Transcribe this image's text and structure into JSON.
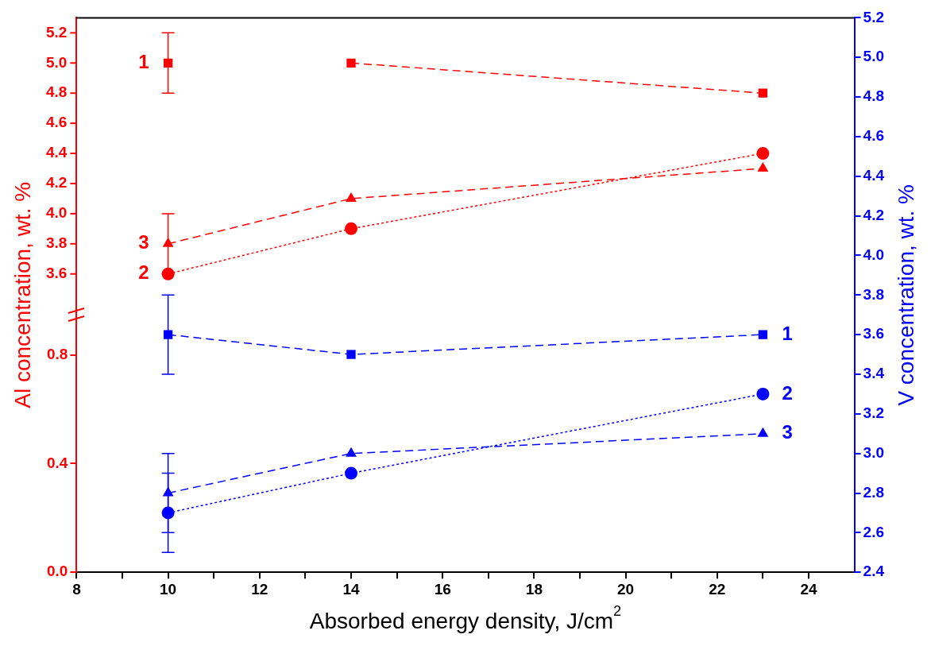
{
  "chart_data": {
    "type": "line",
    "xlabel": "Absorbed energy density, J/cm$^{2}$",
    "ylabel": "Al concentration, wt. %",
    "y2label": "V concentration, wt. %",
    "xlim": [
      8,
      25
    ],
    "xticks": [
      8,
      {
        "value": 9,
        "label": null
      },
      10,
      {
        "value": 11,
        "label": null
      },
      12,
      {
        "value": 13,
        "label": null
      },
      14,
      {
        "value": 15,
        "label": null
      },
      16,
      {
        "value": 17,
        "label": null
      },
      18,
      {
        "value": 19,
        "label": null
      },
      20,
      {
        "value": 21,
        "label": null
      },
      22,
      {
        "value": 23,
        "label": null
      },
      24
    ],
    "ylim": [
      0,
      2.04
    ],
    "yticks": [
      {
        "value": 0,
        "label": "0.0"
      },
      {
        "value": 0.4,
        "label": "0.4"
      },
      {
        "value": 0.8,
        "label": "0.8"
      }
    ],
    "y3lim": [
      1.62,
      5.3
    ],
    "y3ticks": [
      {
        "value": 3.6,
        "label": "3.6"
      },
      {
        "value": 3.8,
        "label": "3.8"
      },
      {
        "value": 4,
        "label": "4.0"
      },
      {
        "value": 4.2,
        "label": "4.2"
      },
      {
        "value": 4.4,
        "label": "4.4"
      },
      {
        "value": 4.6,
        "label": "4.6"
      },
      {
        "value": 4.8,
        "label": "4.8"
      },
      {
        "value": 5,
        "label": "5.0"
      },
      {
        "value": 5.2,
        "label": "5.2"
      }
    ],
    "y2lim": [
      2.4,
      5.2
    ],
    "y2ticks": [
      {
        "value": 2.4,
        "label": "2.4"
      },
      {
        "value": 2.6,
        "label": "2.6"
      },
      {
        "value": 2.8,
        "label": "2.8"
      },
      {
        "value": 3,
        "label": "3.0"
      },
      {
        "value": 3.2,
        "label": "3.2"
      },
      {
        "value": 3.4,
        "label": "3.4"
      },
      {
        "value": 3.6,
        "label": "3.6"
      },
      {
        "value": 3.8,
        "label": "3.8"
      },
      {
        "value": 4,
        "label": "4.0"
      },
      {
        "value": 4.2,
        "label": "4.2"
      },
      {
        "value": 4.4,
        "label": "4.4"
      },
      {
        "value": 4.6,
        "label": "4.6"
      },
      {
        "value": 4.8,
        "label": "4.8"
      },
      {
        "value": 5,
        "label": "5.0"
      },
      {
        "value": 5.2,
        "label": "5.2"
      }
    ],
    "series": [
      {
        "name": "1",
        "axis": "y3",
        "color": "#ff0000",
        "marker": "square",
        "x": [
          10
        ],
        "values": [
          5.0
        ],
        "errors": [
          0.2
        ]
      },
      {
        "axis": "y3",
        "color": "#ff0000",
        "marker": "square",
        "line_style": "dashed",
        "x": [
          14,
          23
        ],
        "values": [
          5.0,
          4.8
        ]
      },
      {
        "name": "2",
        "axis": "y3",
        "color": "#ff0000",
        "marker": "circle",
        "line_style": "dotted",
        "x": [
          10,
          14,
          23
        ],
        "values": [
          3.6,
          3.9,
          4.4
        ]
      },
      {
        "name": "3",
        "axis": "y3",
        "color": "#ff0000",
        "marker": "triangle",
        "line_style": "dashed",
        "x": [
          10,
          14,
          23
        ],
        "values": [
          3.8,
          4.1,
          4.3
        ],
        "errors": [
          0.2,
          null,
          null
        ]
      },
      {
        "name": "1",
        "axis": "y2",
        "color": "#0000ff",
        "marker": "square",
        "line_style": "dashed",
        "x": [
          10,
          14,
          23
        ],
        "values": [
          3.6,
          3.5,
          3.6
        ],
        "errors": [
          0.2,
          null,
          null
        ]
      },
      {
        "name": "2",
        "axis": "y2",
        "color": "#0000ff",
        "marker": "circle",
        "line_style": "dotted",
        "x": [
          10,
          14,
          23
        ],
        "values": [
          2.7,
          2.9,
          3.3
        ],
        "errors": [
          0.2,
          null,
          null
        ]
      },
      {
        "name": "3",
        "axis": "y2",
        "color": "#0000ff",
        "marker": "triangle",
        "line_style": "dashed",
        "x": [
          10,
          14,
          23
        ],
        "values": [
          2.8,
          3.0,
          3.1
        ],
        "errors": [
          0.2,
          null,
          null
        ]
      }
    ]
  }
}
